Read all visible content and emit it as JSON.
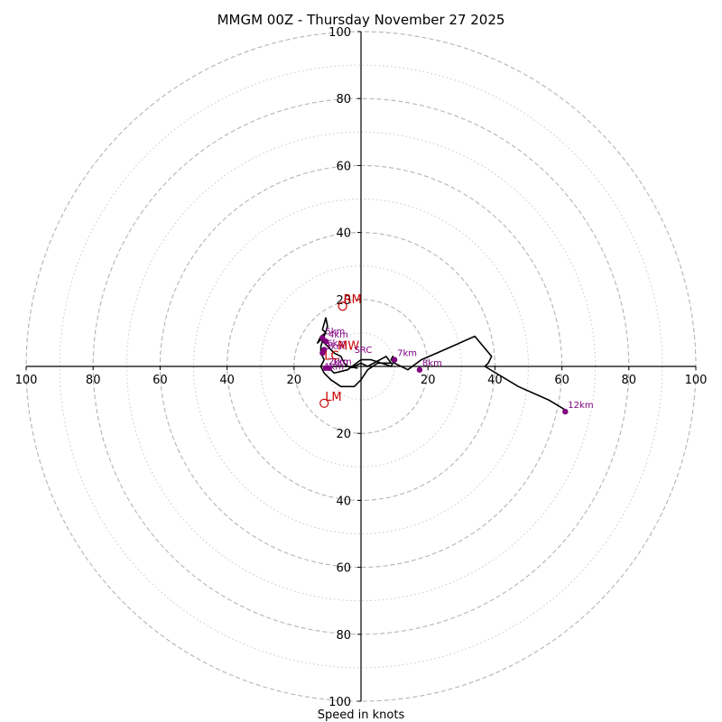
{
  "chart_data": {
    "type": "hodograph",
    "title": "MMGM 00Z - Thursday November 27 2025",
    "xlabel": "Speed in knots",
    "rings": {
      "dashed": [
        20,
        40,
        60,
        80,
        100
      ],
      "dotted": [
        10,
        30,
        50,
        70,
        90
      ]
    },
    "axis_range": [
      -100,
      100
    ],
    "x_tick_labels": [
      "100",
      "80",
      "60",
      "40",
      "20",
      "20",
      "40",
      "60",
      "80",
      "100"
    ],
    "x_tick_values": [
      -100,
      -80,
      -60,
      -40,
      -20,
      20,
      40,
      60,
      80,
      100
    ],
    "y_tick_labels": [
      "100",
      "80",
      "60",
      "40",
      "20",
      "20",
      "40",
      "60",
      "80",
      "100"
    ],
    "y_tick_values": [
      100,
      80,
      60,
      40,
      20,
      -20,
      -40,
      -60,
      -80,
      -100
    ],
    "wind_trace": [
      [
        -1,
        -0.5
      ],
      [
        -4,
        0
      ],
      [
        -5,
        1
      ],
      [
        -6,
        3
      ],
      [
        -8,
        4
      ],
      [
        -9,
        5
      ],
      [
        -10,
        6
      ],
      [
        -11,
        7
      ],
      [
        -12,
        8
      ],
      [
        -13,
        7
      ],
      [
        -12,
        9
      ],
      [
        -10.5,
        10
      ],
      [
        -11.5,
        11
      ],
      [
        -10.5,
        14.5
      ],
      [
        -10,
        12
      ],
      [
        -11,
        9
      ],
      [
        -12,
        6
      ],
      [
        -12,
        4
      ],
      [
        -11,
        2
      ],
      [
        -12,
        0
      ],
      [
        -11,
        -2
      ],
      [
        -9,
        -4
      ],
      [
        -6,
        -6
      ],
      [
        -2,
        -6
      ],
      [
        0,
        -4
      ],
      [
        2,
        -1
      ],
      [
        5,
        1
      ],
      [
        9,
        1
      ],
      [
        7.5,
        3
      ],
      [
        2,
        0
      ],
      [
        0,
        1
      ],
      [
        -2,
        0
      ],
      [
        -6,
        0
      ],
      [
        -10,
        0
      ],
      [
        -8,
        -2
      ],
      [
        -4,
        -1
      ],
      [
        0,
        2
      ],
      [
        3,
        2
      ],
      [
        6,
        1
      ],
      [
        9,
        0
      ],
      [
        10,
        2
      ],
      [
        9.5,
        3
      ],
      [
        9,
        2
      ],
      [
        10,
        1
      ],
      [
        14,
        -1
      ],
      [
        18,
        2
      ],
      [
        25,
        5
      ],
      [
        34,
        9
      ],
      [
        39,
        3
      ],
      [
        38,
        1
      ],
      [
        37,
        0
      ],
      [
        47,
        -6
      ],
      [
        56,
        -10
      ],
      [
        61,
        -13
      ]
    ],
    "height_markers": [
      {
        "label": "1km",
        "u": -9.5,
        "v": -0.5
      },
      {
        "label": "2km",
        "u": -10.5,
        "v": -0.5
      },
      {
        "label": "3km",
        "u": -11.5,
        "v": 4.0
      },
      {
        "label": "4km",
        "u": -10.5,
        "v": 7.5
      },
      {
        "label": "5km",
        "u": -11.5,
        "v": 8.5
      },
      {
        "label": "6km",
        "u": -11.0,
        "v": 5.0
      },
      {
        "label": "7km",
        "u": 10.0,
        "v": 2.0
      },
      {
        "label": "8km",
        "u": 17.5,
        "v": -1.0
      },
      {
        "label": "12km",
        "u": 61.0,
        "v": -13.5
      }
    ],
    "storm_motion": [
      {
        "label": "RM",
        "u": -5.5,
        "v": 18
      },
      {
        "label": "LM",
        "u": -11,
        "v": -11
      }
    ],
    "text_annotations": [
      {
        "label": "MW",
        "u": -7,
        "v": 5
      },
      {
        "label": "LC",
        "u": -11,
        "v": 2
      },
      {
        "label": "SRC",
        "u": -2,
        "v": 4
      },
      {
        "label": "1km",
        "u": -11,
        "v": -1
      }
    ]
  }
}
